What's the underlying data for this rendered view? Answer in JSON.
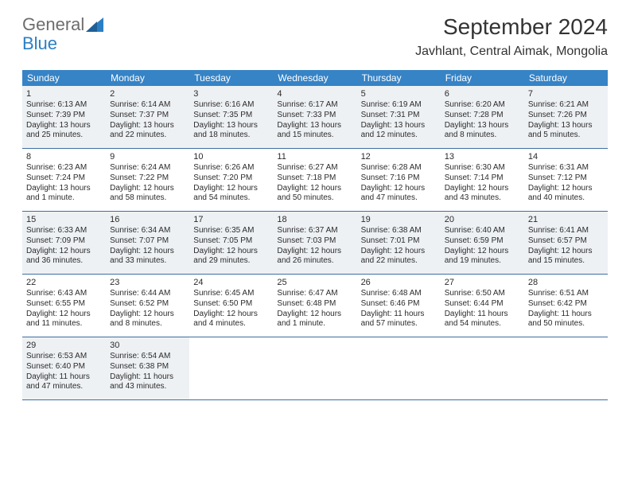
{
  "logo": {
    "word1": "General",
    "word2": "Blue"
  },
  "title": "September 2024",
  "location": "Javhlant, Central Aimak, Mongolia",
  "colors": {
    "header_bg": "#3683c6",
    "row_border": "#3f6fa3",
    "shaded_bg": "#eef1f4",
    "logo_gray": "#6d6d6d",
    "logo_blue": "#2a7fc4"
  },
  "days_of_week": [
    "Sunday",
    "Monday",
    "Tuesday",
    "Wednesday",
    "Thursday",
    "Friday",
    "Saturday"
  ],
  "weeks": [
    {
      "shaded": true,
      "cells": [
        {
          "n": "1",
          "sr": "Sunrise: 6:13 AM",
          "ss": "Sunset: 7:39 PM",
          "dl": "Daylight: 13 hours and 25 minutes."
        },
        {
          "n": "2",
          "sr": "Sunrise: 6:14 AM",
          "ss": "Sunset: 7:37 PM",
          "dl": "Daylight: 13 hours and 22 minutes."
        },
        {
          "n": "3",
          "sr": "Sunrise: 6:16 AM",
          "ss": "Sunset: 7:35 PM",
          "dl": "Daylight: 13 hours and 18 minutes."
        },
        {
          "n": "4",
          "sr": "Sunrise: 6:17 AM",
          "ss": "Sunset: 7:33 PM",
          "dl": "Daylight: 13 hours and 15 minutes."
        },
        {
          "n": "5",
          "sr": "Sunrise: 6:19 AM",
          "ss": "Sunset: 7:31 PM",
          "dl": "Daylight: 13 hours and 12 minutes."
        },
        {
          "n": "6",
          "sr": "Sunrise: 6:20 AM",
          "ss": "Sunset: 7:28 PM",
          "dl": "Daylight: 13 hours and 8 minutes."
        },
        {
          "n": "7",
          "sr": "Sunrise: 6:21 AM",
          "ss": "Sunset: 7:26 PM",
          "dl": "Daylight: 13 hours and 5 minutes."
        }
      ]
    },
    {
      "shaded": false,
      "cells": [
        {
          "n": "8",
          "sr": "Sunrise: 6:23 AM",
          "ss": "Sunset: 7:24 PM",
          "dl": "Daylight: 13 hours and 1 minute."
        },
        {
          "n": "9",
          "sr": "Sunrise: 6:24 AM",
          "ss": "Sunset: 7:22 PM",
          "dl": "Daylight: 12 hours and 58 minutes."
        },
        {
          "n": "10",
          "sr": "Sunrise: 6:26 AM",
          "ss": "Sunset: 7:20 PM",
          "dl": "Daylight: 12 hours and 54 minutes."
        },
        {
          "n": "11",
          "sr": "Sunrise: 6:27 AM",
          "ss": "Sunset: 7:18 PM",
          "dl": "Daylight: 12 hours and 50 minutes."
        },
        {
          "n": "12",
          "sr": "Sunrise: 6:28 AM",
          "ss": "Sunset: 7:16 PM",
          "dl": "Daylight: 12 hours and 47 minutes."
        },
        {
          "n": "13",
          "sr": "Sunrise: 6:30 AM",
          "ss": "Sunset: 7:14 PM",
          "dl": "Daylight: 12 hours and 43 minutes."
        },
        {
          "n": "14",
          "sr": "Sunrise: 6:31 AM",
          "ss": "Sunset: 7:12 PM",
          "dl": "Daylight: 12 hours and 40 minutes."
        }
      ]
    },
    {
      "shaded": true,
      "cells": [
        {
          "n": "15",
          "sr": "Sunrise: 6:33 AM",
          "ss": "Sunset: 7:09 PM",
          "dl": "Daylight: 12 hours and 36 minutes."
        },
        {
          "n": "16",
          "sr": "Sunrise: 6:34 AM",
          "ss": "Sunset: 7:07 PM",
          "dl": "Daylight: 12 hours and 33 minutes."
        },
        {
          "n": "17",
          "sr": "Sunrise: 6:35 AM",
          "ss": "Sunset: 7:05 PM",
          "dl": "Daylight: 12 hours and 29 minutes."
        },
        {
          "n": "18",
          "sr": "Sunrise: 6:37 AM",
          "ss": "Sunset: 7:03 PM",
          "dl": "Daylight: 12 hours and 26 minutes."
        },
        {
          "n": "19",
          "sr": "Sunrise: 6:38 AM",
          "ss": "Sunset: 7:01 PM",
          "dl": "Daylight: 12 hours and 22 minutes."
        },
        {
          "n": "20",
          "sr": "Sunrise: 6:40 AM",
          "ss": "Sunset: 6:59 PM",
          "dl": "Daylight: 12 hours and 19 minutes."
        },
        {
          "n": "21",
          "sr": "Sunrise: 6:41 AM",
          "ss": "Sunset: 6:57 PM",
          "dl": "Daylight: 12 hours and 15 minutes."
        }
      ]
    },
    {
      "shaded": false,
      "cells": [
        {
          "n": "22",
          "sr": "Sunrise: 6:43 AM",
          "ss": "Sunset: 6:55 PM",
          "dl": "Daylight: 12 hours and 11 minutes."
        },
        {
          "n": "23",
          "sr": "Sunrise: 6:44 AM",
          "ss": "Sunset: 6:52 PM",
          "dl": "Daylight: 12 hours and 8 minutes."
        },
        {
          "n": "24",
          "sr": "Sunrise: 6:45 AM",
          "ss": "Sunset: 6:50 PM",
          "dl": "Daylight: 12 hours and 4 minutes."
        },
        {
          "n": "25",
          "sr": "Sunrise: 6:47 AM",
          "ss": "Sunset: 6:48 PM",
          "dl": "Daylight: 12 hours and 1 minute."
        },
        {
          "n": "26",
          "sr": "Sunrise: 6:48 AM",
          "ss": "Sunset: 6:46 PM",
          "dl": "Daylight: 11 hours and 57 minutes."
        },
        {
          "n": "27",
          "sr": "Sunrise: 6:50 AM",
          "ss": "Sunset: 6:44 PM",
          "dl": "Daylight: 11 hours and 54 minutes."
        },
        {
          "n": "28",
          "sr": "Sunrise: 6:51 AM",
          "ss": "Sunset: 6:42 PM",
          "dl": "Daylight: 11 hours and 50 minutes."
        }
      ]
    },
    {
      "shaded": true,
      "cells": [
        {
          "n": "29",
          "sr": "Sunrise: 6:53 AM",
          "ss": "Sunset: 6:40 PM",
          "dl": "Daylight: 11 hours and 47 minutes."
        },
        {
          "n": "30",
          "sr": "Sunrise: 6:54 AM",
          "ss": "Sunset: 6:38 PM",
          "dl": "Daylight: 11 hours and 43 minutes."
        },
        {
          "empty": true
        },
        {
          "empty": true
        },
        {
          "empty": true
        },
        {
          "empty": true
        },
        {
          "empty": true
        }
      ]
    }
  ]
}
